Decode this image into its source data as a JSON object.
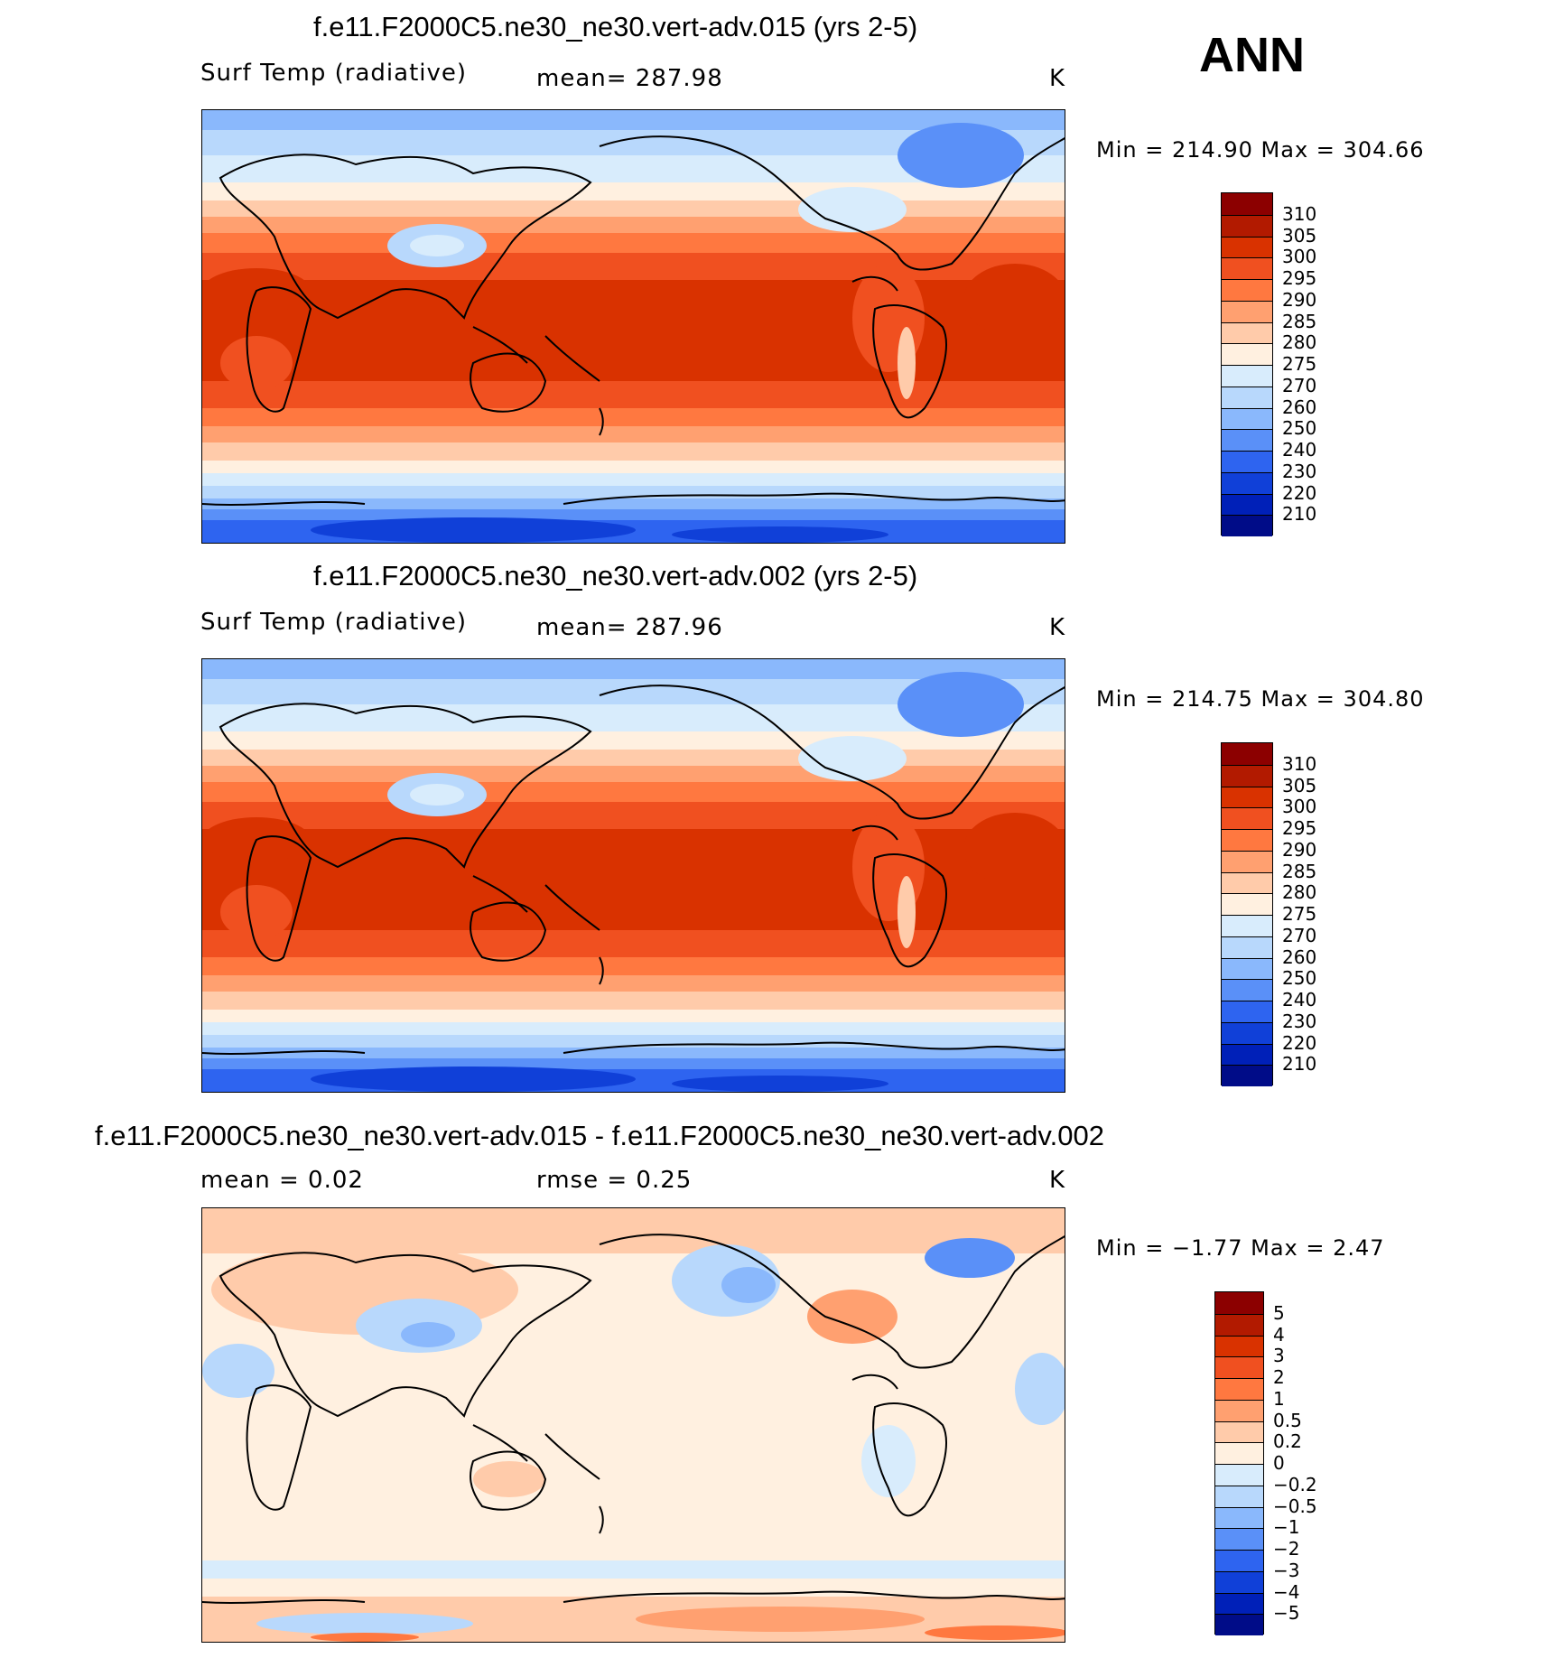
{
  "season": "ANN",
  "panels": [
    {
      "title": "f.e11.F2000C5.ne30_ne30.vert-adv.015 (yrs 2-5)",
      "left_label": "Surf Temp (radiative)",
      "center_label": "mean= 287.98",
      "units": "K",
      "minmax": "Min = 214.90 Max = 304.66",
      "cbar_labels": [
        "310",
        "305",
        "300",
        "295",
        "290",
        "285",
        "280",
        "275",
        "270",
        "260",
        "250",
        "240",
        "230",
        "220",
        "210"
      ],
      "cbar_colors": [
        "#8c0000",
        "#b21a00",
        "#d93200",
        "#f05020",
        "#ff7840",
        "#ffa070",
        "#ffcbaa",
        "#fff0e0",
        "#d8ecfc",
        "#b8d8fc",
        "#8ab8fc",
        "#5a90f8",
        "#2e64f0",
        "#1040d8",
        "#0020b8",
        "#000c88"
      ]
    },
    {
      "title": "f.e11.F2000C5.ne30_ne30.vert-adv.002 (yrs 2-5)",
      "left_label": "Surf Temp (radiative)",
      "center_label": "mean= 287.96",
      "units": "K",
      "minmax": "Min = 214.75 Max = 304.80",
      "cbar_labels": [
        "310",
        "305",
        "300",
        "295",
        "290",
        "285",
        "280",
        "275",
        "270",
        "260",
        "250",
        "240",
        "230",
        "220",
        "210"
      ],
      "cbar_colors": [
        "#8c0000",
        "#b21a00",
        "#d93200",
        "#f05020",
        "#ff7840",
        "#ffa070",
        "#ffcbaa",
        "#fff0e0",
        "#d8ecfc",
        "#b8d8fc",
        "#8ab8fc",
        "#5a90f8",
        "#2e64f0",
        "#1040d8",
        "#0020b8",
        "#000c88"
      ]
    },
    {
      "title": "f.e11.F2000C5.ne30_ne30.vert-adv.015 - f.e11.F2000C5.ne30_ne30.vert-adv.002",
      "left_label": "mean =   0.02",
      "center_label": "rmse =   0.25",
      "units": "K",
      "minmax": "Min =  −1.77 Max =   2.47",
      "cbar_labels": [
        "5",
        "4",
        "3",
        "2",
        "1",
        "0.5",
        "0.2",
        "0",
        "−0.2",
        "−0.5",
        "−1",
        "−2",
        "−3",
        "−4",
        "−5"
      ],
      "cbar_colors": [
        "#8c0000",
        "#b21a00",
        "#d93200",
        "#f05020",
        "#ff7840",
        "#ffa070",
        "#ffcbaa",
        "#fff0e0",
        "#d8ecfc",
        "#b8d8fc",
        "#8ab8fc",
        "#5a90f8",
        "#2e64f0",
        "#1040d8",
        "#0020b8",
        "#000c88"
      ]
    }
  ]
}
